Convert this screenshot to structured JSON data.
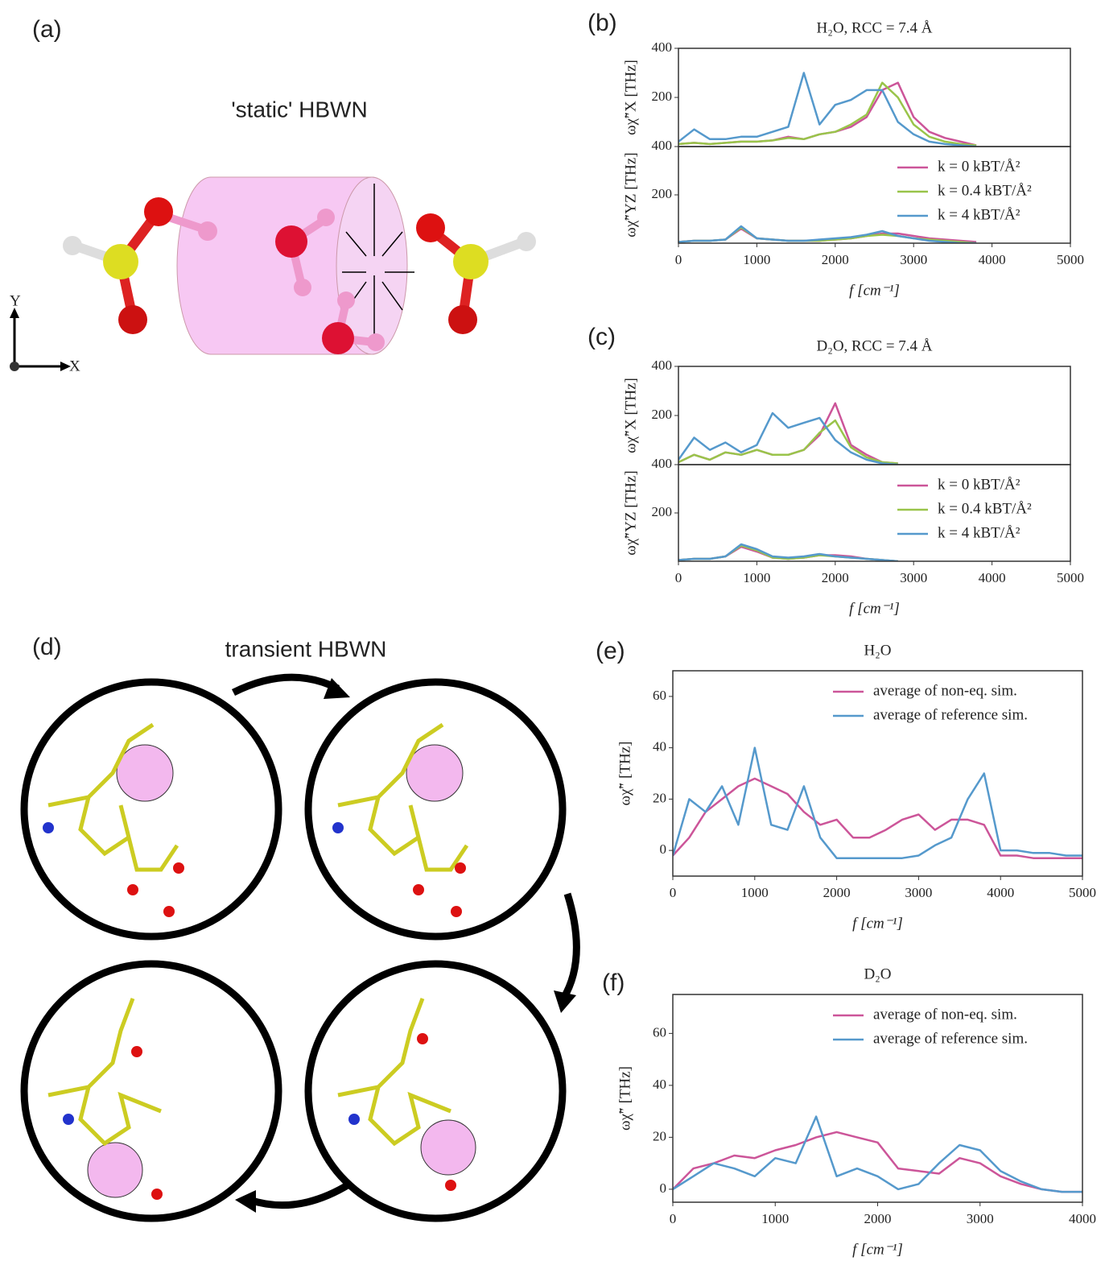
{
  "figure": {
    "panel_labels": [
      "(a)",
      "(b)",
      "(c)",
      "(d)",
      "(e)",
      "(f)"
    ],
    "static_label": "'static' HBWN",
    "transient_label": "transient HBWN",
    "axis_y": "Y",
    "axis_x": "X"
  },
  "chart_data": [
    {
      "type": "line",
      "title": "H₂O, RCC = 7.4 Å",
      "ylabel": "ωχ̃″X [THz]",
      "x": [
        0,
        200,
        400,
        600,
        800,
        1000,
        1200,
        1400,
        1600,
        1800,
        2000,
        2200,
        2400,
        2600,
        2800,
        3000,
        3200,
        3400,
        3600,
        3800
      ],
      "xlim": [
        0,
        5000
      ],
      "ylim": [
        0,
        400
      ],
      "yticks": [
        200,
        400
      ],
      "series": [
        {
          "color": "#cc5599",
          "values": [
            10,
            15,
            10,
            15,
            20,
            20,
            25,
            40,
            30,
            50,
            60,
            80,
            120,
            230,
            260,
            120,
            60,
            35,
            20,
            5
          ]
        },
        {
          "color": "#99c44a",
          "values": [
            10,
            15,
            10,
            15,
            20,
            20,
            25,
            35,
            30,
            50,
            60,
            90,
            130,
            260,
            200,
            90,
            40,
            20,
            10,
            5
          ]
        },
        {
          "color": "#5599cc",
          "values": [
            20,
            70,
            30,
            30,
            40,
            40,
            60,
            80,
            300,
            90,
            170,
            190,
            230,
            230,
            100,
            50,
            20,
            10,
            5,
            0
          ]
        }
      ]
    },
    {
      "type": "line",
      "xlabel": "f [cm⁻¹]",
      "ylabel": "ωχ̃″YZ [THz]",
      "legend": "upper right",
      "x": [
        0,
        200,
        400,
        600,
        800,
        1000,
        1200,
        1400,
        1600,
        1800,
        2000,
        2200,
        2400,
        2600,
        2800,
        3000,
        3200,
        3400,
        3600,
        3800
      ],
      "xlim": [
        0,
        5000
      ],
      "ylim": [
        0,
        400
      ],
      "yticks": [
        200,
        400
      ],
      "xticks": [
        0,
        1000,
        2000,
        3000,
        4000,
        5000
      ],
      "series": [
        {
          "name": "k = 0 kBT/Å²",
          "color": "#cc5599",
          "values": [
            5,
            10,
            10,
            15,
            60,
            20,
            15,
            10,
            10,
            10,
            15,
            20,
            30,
            40,
            40,
            30,
            20,
            15,
            10,
            5
          ]
        },
        {
          "name": "k = 0.4 kBT/Å²",
          "color": "#99c44a",
          "values": [
            5,
            10,
            10,
            15,
            65,
            20,
            15,
            10,
            10,
            10,
            15,
            20,
            30,
            35,
            30,
            20,
            15,
            10,
            5,
            0
          ]
        },
        {
          "name": "k = 4 kBT/Å²",
          "color": "#5599cc",
          "values": [
            5,
            10,
            10,
            15,
            70,
            20,
            15,
            10,
            10,
            15,
            20,
            25,
            35,
            50,
            30,
            20,
            10,
            5,
            0,
            0
          ]
        }
      ]
    },
    {
      "type": "line",
      "title": "D₂O, RCC = 7.4 Å",
      "ylabel": "ωχ̃″X [THz]",
      "x": [
        0,
        200,
        400,
        600,
        800,
        1000,
        1200,
        1400,
        1600,
        1800,
        2000,
        2200,
        2400,
        2600,
        2800
      ],
      "xlim": [
        0,
        5000
      ],
      "ylim": [
        0,
        400
      ],
      "yticks": [
        200,
        400
      ],
      "series": [
        {
          "color": "#cc5599",
          "values": [
            10,
            40,
            20,
            50,
            40,
            60,
            40,
            40,
            60,
            120,
            250,
            80,
            40,
            10,
            5
          ]
        },
        {
          "color": "#99c44a",
          "values": [
            10,
            40,
            20,
            50,
            40,
            60,
            40,
            40,
            60,
            130,
            180,
            70,
            30,
            10,
            5
          ]
        },
        {
          "color": "#5599cc",
          "values": [
            20,
            110,
            60,
            90,
            50,
            80,
            210,
            150,
            170,
            190,
            100,
            50,
            20,
            5,
            0
          ]
        }
      ]
    },
    {
      "type": "line",
      "xlabel": "f [cm⁻¹]",
      "ylabel": "ωχ̃″YZ [THz]",
      "legend": "upper right",
      "x": [
        0,
        200,
        400,
        600,
        800,
        1000,
        1200,
        1400,
        1600,
        1800,
        2000,
        2200,
        2400,
        2600,
        2800
      ],
      "xlim": [
        0,
        5000
      ],
      "ylim": [
        0,
        400
      ],
      "yticks": [
        200,
        400
      ],
      "xticks": [
        0,
        1000,
        2000,
        3000,
        4000,
        5000
      ],
      "series": [
        {
          "name": "k = 0 kBT/Å²",
          "color": "#cc5599",
          "values": [
            5,
            10,
            10,
            20,
            60,
            40,
            15,
            10,
            15,
            25,
            25,
            20,
            10,
            5,
            0
          ]
        },
        {
          "name": "k = 0.4 kBT/Å²",
          "color": "#99c44a",
          "values": [
            5,
            10,
            10,
            20,
            65,
            45,
            15,
            10,
            15,
            25,
            20,
            15,
            10,
            5,
            0
          ]
        },
        {
          "name": "k = 4 kBT/Å²",
          "color": "#5599cc",
          "values": [
            5,
            10,
            10,
            20,
            70,
            50,
            20,
            15,
            20,
            30,
            20,
            15,
            10,
            5,
            0
          ]
        }
      ]
    },
    {
      "type": "line",
      "title": "H₂O",
      "xlabel": "f [cm⁻¹]",
      "ylabel": "ωχ̃″ [THz]",
      "legend": "upper right",
      "x": [
        0,
        200,
        400,
        600,
        800,
        1000,
        1200,
        1400,
        1600,
        1800,
        2000,
        2200,
        2400,
        2600,
        2800,
        3000,
        3200,
        3400,
        3600,
        3800,
        4000,
        4200,
        4400,
        4600,
        4800,
        5000
      ],
      "xlim": [
        0,
        5000
      ],
      "ylim": [
        -10,
        70
      ],
      "yticks": [
        0,
        20,
        40,
        60
      ],
      "xticks": [
        0,
        1000,
        2000,
        3000,
        4000,
        5000
      ],
      "series": [
        {
          "name": "average of non-eq. sim.",
          "color": "#cc5599",
          "values": [
            -2,
            5,
            15,
            20,
            25,
            28,
            25,
            22,
            15,
            10,
            12,
            5,
            5,
            8,
            12,
            14,
            8,
            12,
            12,
            10,
            -2,
            -2,
            -3,
            -3,
            -3,
            -3
          ]
        },
        {
          "name": "average of reference sim.",
          "color": "#5599cc",
          "values": [
            -2,
            20,
            15,
            25,
            10,
            40,
            10,
            8,
            25,
            5,
            -3,
            -3,
            -3,
            -3,
            -3,
            -2,
            2,
            5,
            20,
            30,
            0,
            0,
            -1,
            -1,
            -2,
            -2
          ]
        }
      ]
    },
    {
      "type": "line",
      "title": "D₂O",
      "xlabel": "f [cm⁻¹]",
      "ylabel": "ωχ̃″ [THz]",
      "legend": "upper right",
      "x": [
        0,
        200,
        400,
        600,
        800,
        1000,
        1200,
        1400,
        1600,
        1800,
        2000,
        2200,
        2400,
        2600,
        2800,
        3000,
        3200,
        3400,
        3600,
        3800,
        4000
      ],
      "xlim": [
        0,
        4000
      ],
      "ylim": [
        -5,
        75
      ],
      "yticks": [
        0,
        20,
        40,
        60
      ],
      "xticks": [
        0,
        1000,
        2000,
        3000,
        4000
      ],
      "series": [
        {
          "name": "average of non-eq. sim.",
          "color": "#cc5599",
          "values": [
            0,
            8,
            10,
            13,
            12,
            15,
            17,
            20,
            22,
            20,
            18,
            8,
            7,
            6,
            12,
            10,
            5,
            2,
            0,
            -1,
            -1
          ]
        },
        {
          "name": "average of reference sim.",
          "color": "#5599cc",
          "values": [
            0,
            5,
            10,
            8,
            5,
            12,
            10,
            28,
            5,
            8,
            5,
            0,
            2,
            10,
            17,
            15,
            7,
            3,
            0,
            -1,
            -1
          ]
        }
      ]
    }
  ]
}
